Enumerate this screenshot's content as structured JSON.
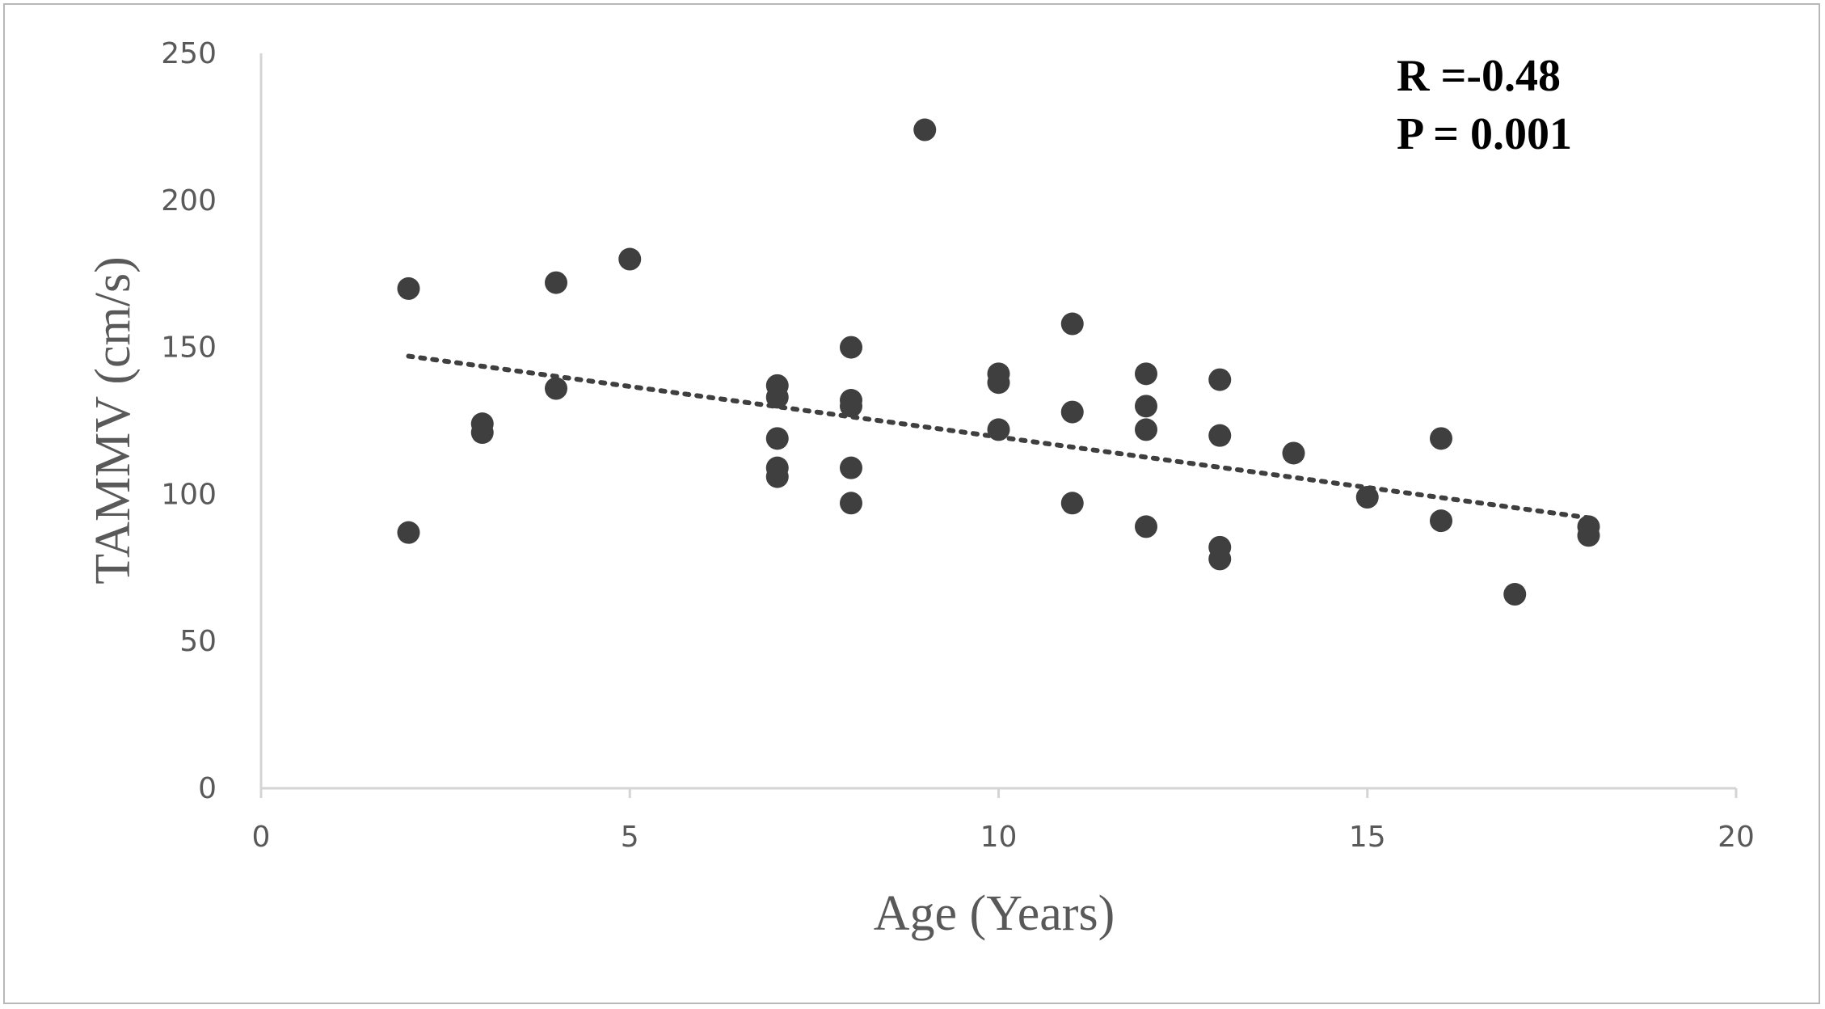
{
  "chart_data": {
    "type": "scatter",
    "title": "",
    "xlabel": "Age (Years)",
    "ylabel": "TAMMV (cm/s)",
    "xlim": [
      0,
      20
    ],
    "ylim": [
      0,
      250
    ],
    "x_ticks": [
      0,
      5,
      10,
      15,
      20
    ],
    "y_ticks": [
      0,
      50,
      100,
      150,
      200,
      250
    ],
    "grid": false,
    "legend": "none",
    "annotations": [
      "R =-0.48",
      "P = 0.001"
    ],
    "marker_color": "#3f3f3f",
    "trendline": {
      "style": "dotted",
      "color": "#3f3f3f",
      "x": [
        2,
        18
      ],
      "y": [
        147,
        92
      ]
    },
    "series": [
      {
        "points": [
          [
            2,
            170
          ],
          [
            2,
            87
          ],
          [
            3,
            124
          ],
          [
            3,
            121
          ],
          [
            4,
            172
          ],
          [
            4,
            136
          ],
          [
            5,
            180
          ],
          [
            7,
            137
          ],
          [
            7,
            133
          ],
          [
            7,
            119
          ],
          [
            7,
            109
          ],
          [
            7,
            106
          ],
          [
            8,
            150
          ],
          [
            8,
            132
          ],
          [
            8,
            130
          ],
          [
            8,
            109
          ],
          [
            8,
            97
          ],
          [
            9,
            224
          ],
          [
            10,
            141
          ],
          [
            10,
            138
          ],
          [
            10,
            122
          ],
          [
            11,
            158
          ],
          [
            11,
            128
          ],
          [
            11,
            97
          ],
          [
            12,
            141
          ],
          [
            12,
            130
          ],
          [
            12,
            122
          ],
          [
            12,
            89
          ],
          [
            13,
            139
          ],
          [
            13,
            120
          ],
          [
            13,
            82
          ],
          [
            13,
            78
          ],
          [
            14,
            114
          ],
          [
            15,
            99
          ],
          [
            16,
            119
          ],
          [
            16,
            91
          ],
          [
            17,
            66
          ],
          [
            18,
            89
          ],
          [
            18,
            86
          ]
        ]
      }
    ]
  }
}
